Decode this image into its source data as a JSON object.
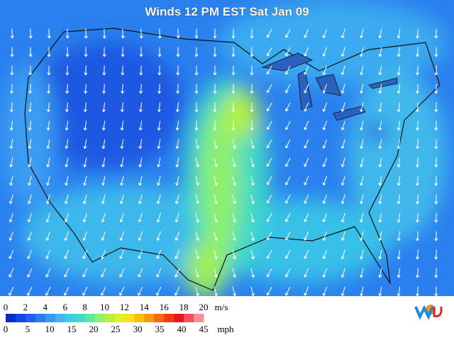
{
  "title": "Winds 12 PM EST Sat Jan 09",
  "legend": {
    "ms_labels": [
      "0",
      "2",
      "4",
      "6",
      "8",
      "10",
      "12",
      "14",
      "16",
      "18",
      "20"
    ],
    "ms_unit": "m/s",
    "mph_labels": [
      "0",
      "5",
      "10",
      "15",
      "20",
      "25",
      "30",
      "35",
      "40",
      "45"
    ],
    "mph_unit": "mph",
    "colors": [
      "#0a2ccf",
      "#1446e0",
      "#1e60ec",
      "#2a7cf2",
      "#3a98f4",
      "#42b4f2",
      "#3ccce6",
      "#40dcc8",
      "#5ae89c",
      "#8cf06a",
      "#b8f040",
      "#e0f020",
      "#f8e018",
      "#f8c010",
      "#f89810",
      "#f86810",
      "#f03a10",
      "#e81818",
      "#f05060",
      "#f8909a"
    ]
  }
}
